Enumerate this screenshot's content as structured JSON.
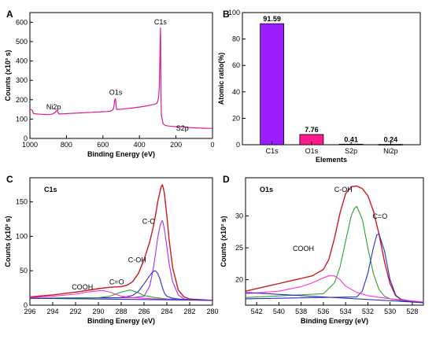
{
  "chart_data": [
    {
      "panel": "A",
      "type": "line",
      "xlabel": "Binding Energy (eV)",
      "ylabel": "Counts (x10³ s)",
      "xlim": [
        1000,
        0
      ],
      "ylim": [
        0,
        650
      ],
      "xticks": [
        1000,
        800,
        600,
        400,
        200,
        0
      ],
      "yticks": [
        0,
        100,
        200,
        300,
        400,
        500,
        600
      ],
      "color": "#e0168c",
      "annotations": [
        {
          "text": "Ni2p",
          "x": 870,
          "y": 150
        },
        {
          "text": "O1s",
          "x": 530,
          "y": 225
        },
        {
          "text": "C1s",
          "x": 285,
          "y": 590
        },
        {
          "text": "S2p",
          "x": 165,
          "y": 40
        }
      ],
      "x": [
        1000,
        990,
        985,
        982,
        975,
        960,
        940,
        920,
        900,
        880,
        860,
        855,
        850,
        840,
        820,
        800,
        780,
        760,
        740,
        720,
        700,
        680,
        660,
        640,
        620,
        600,
        580,
        560,
        545,
        540,
        535,
        532,
        530,
        528,
        525,
        520,
        500,
        480,
        460,
        440,
        420,
        400,
        380,
        360,
        340,
        320,
        305,
        300,
        295,
        292,
        290,
        288,
        286,
        285,
        284,
        283,
        282,
        280,
        270,
        260,
        250,
        240,
        220,
        200,
        180,
        165,
        160,
        150,
        120,
        100,
        80,
        50,
        20,
        0
      ],
      "y": [
        150,
        148,
        140,
        130,
        128,
        126,
        125,
        124,
        123,
        125,
        135,
        145,
        140,
        126,
        127,
        128,
        129,
        130,
        131,
        132,
        133,
        134,
        135,
        136,
        137,
        138,
        139,
        141,
        148,
        165,
        200,
        205,
        198,
        170,
        150,
        150,
        151,
        153,
        155,
        157,
        160,
        162,
        165,
        168,
        172,
        176,
        182,
        190,
        215,
        255,
        320,
        420,
        520,
        570,
        500,
        350,
        200,
        120,
        75,
        68,
        66,
        64,
        62,
        61,
        60,
        60,
        63,
        58,
        56,
        55,
        54,
        53,
        52,
        52
      ]
    },
    {
      "panel": "B",
      "type": "bar",
      "xlabel": "Elements",
      "ylabel": "Atomic ratio(%)",
      "ylim": [
        0,
        100
      ],
      "yticks": [
        0,
        20,
        40,
        60,
        80,
        100
      ],
      "categories": [
        "C1s",
        "O1s",
        "S2p",
        "Ni2p"
      ],
      "values": [
        91.59,
        7.76,
        0.41,
        0.24
      ],
      "value_labels": [
        "91.59",
        "7.76",
        "0.41",
        "0.24"
      ],
      "colors": [
        "#9b1dff",
        "#ff1a8c",
        "#4a4aff",
        "#4a4aff"
      ]
    },
    {
      "panel": "C",
      "type": "line",
      "title": "C1s",
      "xlabel": "Binding Energy (eV)",
      "ylabel": "Counts (x10³ s)",
      "xlim": [
        296,
        280
      ],
      "ylim": [
        0,
        185
      ],
      "xticks": [
        296,
        294,
        292,
        290,
        288,
        286,
        284,
        282,
        280
      ],
      "yticks": [
        0,
        50,
        100,
        150
      ],
      "annotations": [
        {
          "text": "C-C",
          "x": 285.6,
          "y": 118
        },
        {
          "text": "C-OH",
          "x": 286.6,
          "y": 62
        },
        {
          "text": "C=O",
          "x": 288.4,
          "y": 30
        },
        {
          "text": "COOH",
          "x": 291.4,
          "y": 23
        }
      ],
      "series": [
        {
          "color": "#cc1a1a",
          "x": [
            296,
            294,
            292,
            290,
            289,
            288,
            287.5,
            287,
            286.5,
            286,
            285.5,
            285.2,
            285,
            284.8,
            284.6,
            284.5,
            284.4,
            284.3,
            284.2,
            284.0,
            283.8,
            283.5,
            283.0,
            282.5,
            282,
            281,
            280
          ],
          "y": [
            12,
            15,
            19,
            24,
            26,
            27,
            29,
            34,
            46,
            66,
            92,
            113,
            130,
            150,
            165,
            172,
            175,
            170,
            160,
            130,
            95,
            55,
            22,
            12,
            9,
            8,
            7
          ]
        },
        {
          "color": "#9b30ff",
          "x": [
            296,
            287,
            286,
            285.5,
            285.2,
            285,
            284.8,
            284.6,
            284.5,
            284.4,
            284.3,
            284.2,
            284.0,
            283.8,
            283.5,
            283.0,
            282.5,
            282,
            281,
            280
          ],
          "y": [
            10,
            11,
            13,
            28,
            52,
            74,
            98,
            115,
            120,
            123,
            118,
            108,
            85,
            60,
            34,
            15,
            9,
            8,
            8,
            7
          ]
        },
        {
          "color": "#2c2cc8",
          "x": [
            296,
            288,
            287,
            286.5,
            286,
            285.5,
            285.2,
            285.0,
            284.8,
            284.6,
            284.4,
            284.2,
            284.0,
            283.5,
            283.0,
            282,
            280
          ],
          "y": [
            10,
            11,
            14,
            20,
            31,
            43,
            49,
            50,
            46,
            38,
            26,
            17,
            13,
            10,
            9,
            8,
            7
          ]
        },
        {
          "color": "#2ca02c",
          "x": [
            296,
            290,
            289,
            288.5,
            288,
            287.5,
            287.2,
            287,
            286.5,
            286,
            285,
            284,
            282,
            280
          ],
          "y": [
            10,
            11,
            13,
            16,
            19,
            21,
            22,
            21,
            18,
            14,
            11,
            9,
            8,
            7
          ]
        },
        {
          "color": "#ff33cc",
          "x": [
            296,
            294,
            292,
            291,
            290,
            289.5,
            289,
            288.5,
            288,
            287,
            286,
            285,
            283,
            280
          ],
          "y": [
            11,
            13,
            16,
            19,
            21,
            21,
            19,
            16,
            13,
            11,
            10,
            9,
            8,
            7
          ]
        },
        {
          "color": "#2c2cc8",
          "x": [
            296,
            280
          ],
          "y": [
            10,
            7
          ]
        }
      ]
    },
    {
      "panel": "D",
      "type": "line",
      "title": "O1s",
      "xlabel": "Binding Energy (eV)",
      "ylabel": "Counts (x10³ s)",
      "xlim": [
        543,
        527
      ],
      "ylim": [
        16,
        36
      ],
      "xticks": [
        542,
        540,
        538,
        536,
        534,
        532,
        530,
        528
      ],
      "yticks": [
        20,
        25,
        30
      ],
      "annotations": [
        {
          "text": "C-OH",
          "x": 534.2,
          "y": 33.8
        },
        {
          "text": "C=O",
          "x": 530.9,
          "y": 29.6
        },
        {
          "text": "COOH",
          "x": 537.8,
          "y": 24.5
        }
      ],
      "series": [
        {
          "color": "#cc1a1a",
          "x": [
            543,
            542,
            541,
            540,
            539,
            538,
            537,
            536,
            535.5,
            535,
            534.5,
            534,
            533.5,
            533,
            532.5,
            532,
            531.5,
            531,
            530.5,
            530,
            529.5,
            529,
            528,
            527
          ],
          "y": [
            18.2,
            18.6,
            19.0,
            19.4,
            19.8,
            20.2,
            20.6,
            21.6,
            23.2,
            26.5,
            30.5,
            33.5,
            34.6,
            34.7,
            34.3,
            33.2,
            30.8,
            27.2,
            22.8,
            19.4,
            17.5,
            16.9,
            16.6,
            16.4
          ]
        },
        {
          "color": "#2ca02c",
          "x": [
            543,
            536,
            535,
            534.5,
            534,
            533.5,
            533.2,
            533,
            532.5,
            532,
            531.5,
            531,
            530.5,
            530,
            529,
            527
          ],
          "y": [
            17.2,
            17.8,
            19.5,
            22.0,
            26.0,
            30.0,
            31.2,
            31.5,
            29.5,
            25.0,
            21.0,
            18.5,
            17.4,
            17.0,
            16.7,
            16.4
          ]
        },
        {
          "color": "#2c2cc8",
          "x": [
            543,
            533,
            532.5,
            532,
            531.5,
            531.2,
            531,
            530.5,
            530,
            529.5,
            529,
            528,
            527
          ],
          "y": [
            17.0,
            17.3,
            18.2,
            21.0,
            25.0,
            27.0,
            27.2,
            24.5,
            20.0,
            17.6,
            16.8,
            16.5,
            16.4
          ]
        },
        {
          "color": "#ff33cc",
          "x": [
            543,
            540,
            538,
            537,
            536,
            535.5,
            535,
            534.5,
            534,
            533,
            532,
            530,
            527
          ],
          "y": [
            17.8,
            18.2,
            18.9,
            19.5,
            20.3,
            20.6,
            20.6,
            20.0,
            19.0,
            18.0,
            17.5,
            17.0,
            16.5
          ]
        },
        {
          "color": "#2c2cc8",
          "x": [
            543,
            527
          ],
          "y": [
            18.0,
            16.4
          ]
        }
      ]
    }
  ]
}
